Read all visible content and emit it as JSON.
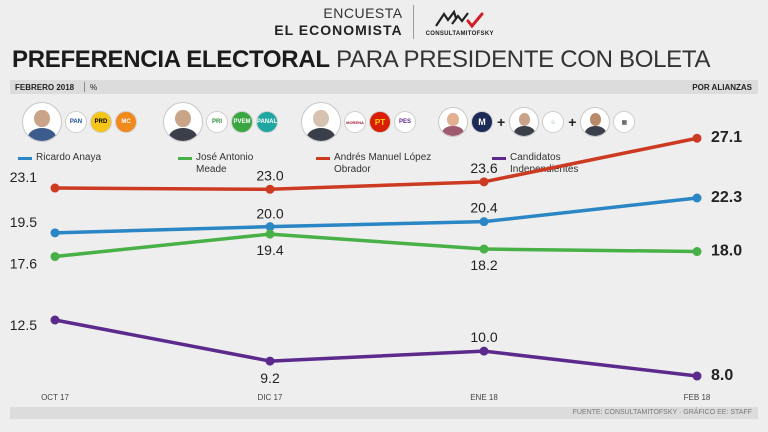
{
  "header": {
    "line1": "ENCUESTA",
    "line2": "EL ECONOMISTA",
    "brand": "CONSULTAMITOFSKY"
  },
  "title": {
    "bold": "PREFERENCIA ELECTORAL",
    "light": "PARA PRESIDENTE CON BOLETA"
  },
  "subbar": {
    "date": "FEBRERO 2018",
    "unit": "%",
    "right": "POR ALIANZAS"
  },
  "parties": {
    "anaya": [
      "PAN",
      "PRD",
      "MC"
    ],
    "meade": [
      "PRI",
      "PVEM",
      "PANAL"
    ],
    "amlo": [
      "MORENA",
      "PT",
      "PES"
    ]
  },
  "source": "FUENTE: CONSULTAMITOFSKY · GRÁFICO EE: STAFF",
  "chart_data": {
    "type": "line",
    "title": "PREFERENCIA ELECTORAL PARA PRESIDENTE CON BOLETA",
    "xlabel": "",
    "ylabel": "%",
    "ylim": [
      5,
      30
    ],
    "grid": false,
    "legend": "top",
    "categories": [
      "OCT 17",
      "DIC 17",
      "ENE 18",
      "FEB 18"
    ],
    "series": [
      {
        "name": "Ricardo Anaya",
        "color": "#2a86c4",
        "values": [
          19.5,
          20.0,
          20.4,
          22.3
        ],
        "labels": [
          "19.5",
          "20.0",
          "20.4",
          "22.3"
        ]
      },
      {
        "name": "José Antonio Meade",
        "color": "#47b046",
        "values": [
          17.6,
          19.4,
          18.2,
          18.0
        ],
        "labels": [
          "17.6",
          "19.4",
          "18.2",
          "18.0"
        ]
      },
      {
        "name": "Andrés Manuel López Obrador",
        "color": "#cc3a22",
        "values": [
          23.1,
          23.0,
          23.6,
          27.1
        ],
        "labels": [
          "23.1",
          "23.0",
          "23.6",
          "27.1"
        ]
      },
      {
        "name": "Candidatos Independientes",
        "color": "#5b2a8c",
        "values": [
          12.5,
          9.2,
          10.0,
          8.0
        ],
        "labels": [
          "12.5",
          "9.2",
          "10.0",
          "8.0"
        ]
      }
    ]
  }
}
